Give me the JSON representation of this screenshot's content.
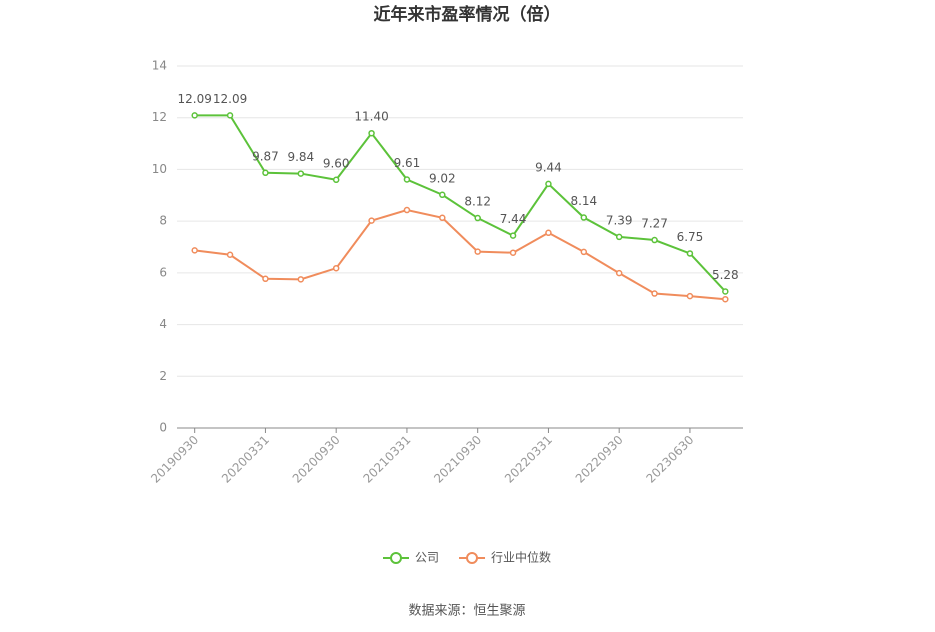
{
  "chart_data": {
    "type": "line",
    "title": "近年来市盈率情况（倍）",
    "categories": [
      "20190930",
      null,
      "20200331",
      null,
      "20200930",
      null,
      "20210331",
      null,
      "20210930",
      null,
      "20220331",
      null,
      "20220930",
      null,
      "20230630",
      null
    ],
    "series": [
      {
        "name": "公司",
        "color": "#5cc23a",
        "values": [
          12.09,
          12.09,
          9.87,
          9.84,
          9.6,
          11.4,
          9.61,
          9.02,
          8.12,
          7.44,
          9.44,
          8.14,
          7.39,
          7.27,
          6.75,
          5.28
        ],
        "value_labels": [
          "12.09",
          "12.09",
          "9.87",
          "9.84",
          "9.60",
          "11.40",
          "9.61",
          "9.02",
          "8.12",
          "7.44",
          "9.44",
          "8.14",
          "7.39",
          "7.27",
          "6.75",
          "5.28"
        ]
      },
      {
        "name": "行业中位数",
        "color": "#f08c5c",
        "values": [
          6.87,
          6.7,
          5.77,
          5.75,
          6.18,
          8.02,
          8.43,
          8.13,
          6.82,
          6.78,
          7.55,
          6.81,
          5.99,
          5.2,
          5.1,
          4.98
        ]
      }
    ],
    "ylim": [
      0,
      14
    ],
    "yticks": [
      0,
      2,
      4,
      6,
      8,
      10,
      12,
      14
    ],
    "grid": true,
    "legend": "bottom",
    "source": "数据来源：恒生聚源"
  }
}
